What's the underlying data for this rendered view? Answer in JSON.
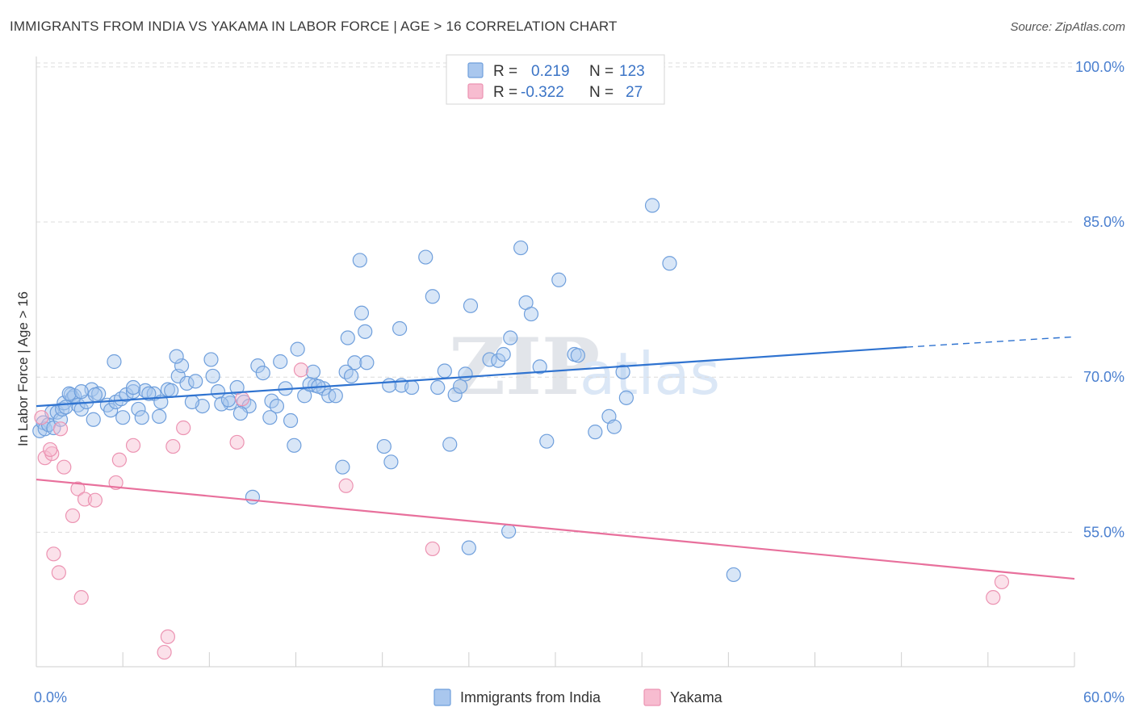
{
  "title": "IMMIGRANTS FROM INDIA VS YAKAMA IN LABOR FORCE | AGE > 16 CORRELATION CHART",
  "source": "Source: ZipAtlas.com",
  "watermark": {
    "zip": "ZIP",
    "atlas": "atlas"
  },
  "colors": {
    "blue_fill": "#a9c7ee",
    "blue_stroke": "#6f9fdc",
    "blue_line": "#2f73d0",
    "pink_fill": "#f7bcd0",
    "pink_stroke": "#ec93b2",
    "pink_line": "#e8709c",
    "grid": "#dcdcdc",
    "tick_text": "#4a7fcf"
  },
  "stats_box": {
    "rows": [
      {
        "r_label": "R =",
        "r_value": "0.219",
        "n_label": "N =",
        "n_value": "123",
        "color": "blue"
      },
      {
        "r_label": "R =",
        "r_value": "-0.322",
        "n_label": "N =",
        "n_value": "27",
        "color": "pink"
      }
    ]
  },
  "chart_data": {
    "type": "scatter",
    "title": "IMMIGRANTS FROM INDIA VS YAKAMA IN LABOR FORCE | AGE > 16 CORRELATION CHART",
    "xlabel": "",
    "ylabel": "In Labor Force | Age > 16",
    "xlim": [
      0,
      60
    ],
    "ylim": [
      42,
      101
    ],
    "x_tick_labels": [
      {
        "value": 0,
        "label": "0.0%"
      },
      {
        "value": 60,
        "label": "60.0%"
      }
    ],
    "y_tick_labels": [
      {
        "value": 55,
        "label": "55.0%"
      },
      {
        "value": 70,
        "label": "70.0%"
      },
      {
        "value": 85,
        "label": "85.0%"
      },
      {
        "value": 100,
        "label": "100.0%"
      }
    ],
    "y_gridlines": [
      55,
      70,
      85,
      100
    ],
    "grid": true,
    "legend_position": "bottom-center",
    "series": [
      {
        "name": "Immigrants from India",
        "color": "blue",
        "trend": {
          "x0": 0,
          "y0": 67.2,
          "x1": 50.3,
          "y1": 72.9,
          "dashed_to_x": 60,
          "dashed_to_y": 73.9
        },
        "points": [
          [
            0.2,
            64.8
          ],
          [
            0.4,
            65.6
          ],
          [
            0.5,
            65.0
          ],
          [
            0.7,
            65.4
          ],
          [
            0.9,
            66.6
          ],
          [
            1.0,
            65.1
          ],
          [
            1.2,
            66.6
          ],
          [
            1.4,
            65.9
          ],
          [
            1.5,
            66.9
          ],
          [
            1.6,
            67.5
          ],
          [
            2.0,
            68.3
          ],
          [
            2.1,
            68.0
          ],
          [
            2.2,
            68.2
          ],
          [
            2.4,
            67.3
          ],
          [
            2.6,
            66.9
          ],
          [
            2.9,
            67.6
          ],
          [
            3.2,
            68.8
          ],
          [
            3.6,
            68.4
          ],
          [
            4.1,
            67.3
          ],
          [
            4.3,
            66.8
          ],
          [
            4.6,
            67.6
          ],
          [
            4.9,
            67.9
          ],
          [
            5.0,
            66.1
          ],
          [
            5.2,
            68.3
          ],
          [
            5.6,
            68.6
          ],
          [
            5.9,
            66.9
          ],
          [
            6.1,
            66.1
          ],
          [
            6.3,
            68.7
          ],
          [
            6.8,
            68.4
          ],
          [
            7.2,
            67.6
          ],
          [
            7.6,
            68.8
          ],
          [
            7.8,
            68.7
          ],
          [
            8.2,
            70.1
          ],
          [
            8.4,
            71.1
          ],
          [
            8.7,
            69.4
          ],
          [
            9.2,
            69.6
          ],
          [
            9.6,
            67.2
          ],
          [
            10.1,
            71.7
          ],
          [
            10.2,
            70.1
          ],
          [
            10.5,
            68.6
          ],
          [
            11.2,
            67.5
          ],
          [
            11.6,
            69.0
          ],
          [
            12.0,
            67.6
          ],
          [
            12.3,
            67.2
          ],
          [
            12.8,
            71.1
          ],
          [
            13.1,
            70.4
          ],
          [
            13.6,
            67.7
          ],
          [
            13.9,
            67.2
          ],
          [
            14.1,
            71.5
          ],
          [
            14.4,
            68.9
          ],
          [
            14.7,
            65.8
          ],
          [
            14.9,
            63.4
          ],
          [
            15.1,
            72.7
          ],
          [
            15.5,
            68.2
          ],
          [
            16.0,
            70.5
          ],
          [
            16.1,
            69.2
          ],
          [
            16.6,
            68.9
          ],
          [
            16.9,
            68.2
          ],
          [
            17.3,
            68.2
          ],
          [
            17.7,
            61.3
          ],
          [
            18.0,
            73.8
          ],
          [
            18.4,
            71.4
          ],
          [
            18.7,
            81.3
          ],
          [
            18.8,
            76.2
          ],
          [
            19.0,
            74.4
          ],
          [
            19.1,
            71.4
          ],
          [
            20.1,
            63.3
          ],
          [
            20.5,
            61.8
          ],
          [
            21.0,
            74.7
          ],
          [
            21.1,
            69.2
          ],
          [
            22.5,
            81.6
          ],
          [
            22.9,
            77.8
          ],
          [
            23.6,
            70.6
          ],
          [
            23.9,
            63.5
          ],
          [
            24.2,
            68.3
          ],
          [
            24.5,
            69.1
          ],
          [
            24.8,
            70.3
          ],
          [
            25.0,
            53.5
          ],
          [
            25.1,
            76.9
          ],
          [
            26.2,
            71.7
          ],
          [
            26.7,
            71.6
          ],
          [
            27.3,
            55.1
          ],
          [
            27.4,
            73.8
          ],
          [
            28.0,
            82.5
          ],
          [
            28.3,
            77.2
          ],
          [
            28.6,
            76.1
          ],
          [
            29.5,
            63.8
          ],
          [
            30.2,
            79.4
          ],
          [
            31.1,
            72.2
          ],
          [
            31.3,
            72.1
          ],
          [
            32.3,
            64.7
          ],
          [
            33.1,
            66.2
          ],
          [
            33.4,
            65.2
          ],
          [
            33.9,
            70.5
          ],
          [
            34.1,
            68.0
          ],
          [
            35.6,
            86.6
          ],
          [
            36.6,
            81.0
          ],
          [
            40.3,
            50.9
          ],
          [
            5.6,
            69.0
          ],
          [
            3.3,
            65.9
          ],
          [
            1.9,
            68.4
          ],
          [
            1.7,
            67.1
          ],
          [
            2.6,
            68.6
          ],
          [
            3.4,
            68.3
          ],
          [
            6.5,
            68.4
          ],
          [
            7.1,
            66.2
          ],
          [
            9.0,
            67.6
          ],
          [
            10.7,
            67.4
          ],
          [
            11.1,
            67.8
          ],
          [
            11.8,
            66.5
          ],
          [
            12.5,
            58.4
          ],
          [
            13.5,
            66.1
          ],
          [
            15.8,
            69.3
          ],
          [
            16.3,
            69.1
          ],
          [
            17.9,
            70.5
          ],
          [
            18.2,
            70.1
          ],
          [
            20.4,
            69.2
          ],
          [
            21.7,
            69.0
          ],
          [
            23.2,
            69.0
          ],
          [
            27.0,
            72.2
          ],
          [
            29.1,
            71.0
          ],
          [
            8.1,
            72.0
          ],
          [
            4.5,
            71.5
          ]
        ]
      },
      {
        "name": "Yakama",
        "color": "pink",
        "trend": {
          "x0": 0,
          "y0": 60.1,
          "x1": 60,
          "y1": 50.5
        },
        "points": [
          [
            0.3,
            66.1
          ],
          [
            0.5,
            62.2
          ],
          [
            0.9,
            62.6
          ],
          [
            1.0,
            52.9
          ],
          [
            1.3,
            51.1
          ],
          [
            1.4,
            65.0
          ],
          [
            1.6,
            61.3
          ],
          [
            2.1,
            56.6
          ],
          [
            2.4,
            59.2
          ],
          [
            2.6,
            48.7
          ],
          [
            2.8,
            58.2
          ],
          [
            3.4,
            58.1
          ],
          [
            4.6,
            59.8
          ],
          [
            4.8,
            62.0
          ],
          [
            5.6,
            63.4
          ],
          [
            7.4,
            43.4
          ],
          [
            7.6,
            44.9
          ],
          [
            7.9,
            63.3
          ],
          [
            8.5,
            65.1
          ],
          [
            11.6,
            63.7
          ],
          [
            11.9,
            67.9
          ],
          [
            15.3,
            70.7
          ],
          [
            17.9,
            59.5
          ],
          [
            22.9,
            53.4
          ],
          [
            55.3,
            48.7
          ],
          [
            55.8,
            50.2
          ],
          [
            0.8,
            63.0
          ]
        ]
      }
    ]
  },
  "legend": {
    "items": [
      {
        "label": "Immigrants from India",
        "color": "blue"
      },
      {
        "label": "Yakama",
        "color": "pink"
      }
    ]
  }
}
